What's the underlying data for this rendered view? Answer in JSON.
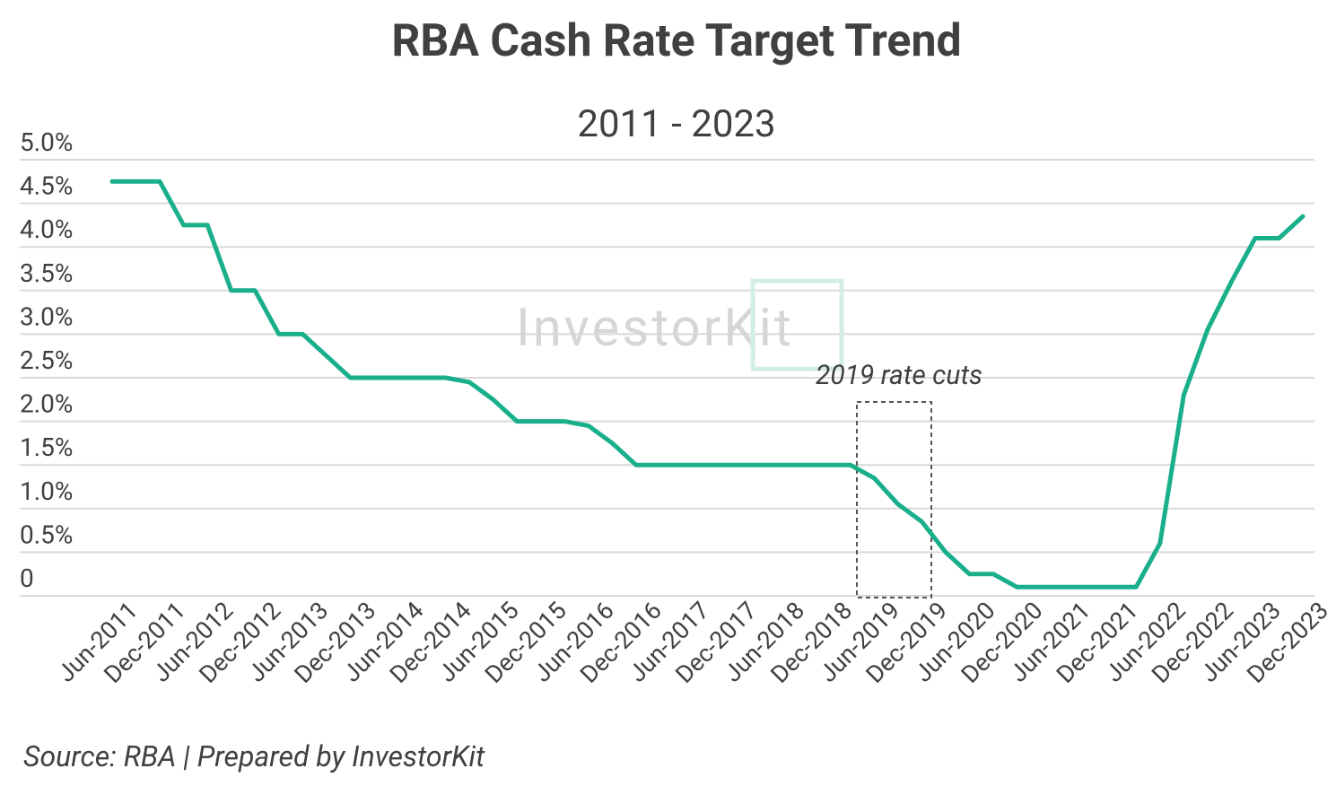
{
  "chart_data": {
    "type": "line",
    "title": "RBA Cash Rate Target Trend",
    "subtitle": "2011 - 2023",
    "source": "Source: RBA | Prepared by InvestorKit",
    "watermark": "InvestorKit",
    "annotation": "2019 rate cuts",
    "categories": [
      "Jun-2011",
      null,
      "Dec-2011",
      null,
      "Jun-2012",
      null,
      "Dec-2012",
      null,
      "Jun-2013",
      null,
      "Dec-2013",
      null,
      "Jun-2014",
      null,
      "Dec-2014",
      null,
      "Jun-2015",
      null,
      "Dec-2015",
      null,
      "Jun-2016",
      null,
      "Dec-2016",
      null,
      "Jun-2017",
      null,
      "Dec-2017",
      null,
      "Jun-2018",
      null,
      "Dec-2018",
      null,
      "Jun-2019",
      null,
      "Dec-2019",
      null,
      "Jun-2020",
      null,
      "Dec-2020",
      null,
      "Jun-2021",
      null,
      "Dec-2021",
      null,
      "Jun-2022",
      null,
      "Dec-2022",
      null,
      "Jun-2023",
      null,
      "Dec-2023"
    ],
    "values": [
      4.75,
      4.75,
      4.75,
      4.25,
      4.25,
      3.5,
      3.5,
      3.0,
      3.0,
      2.75,
      2.5,
      2.5,
      2.5,
      2.5,
      2.5,
      2.45,
      2.25,
      2.0,
      2.0,
      2.0,
      1.95,
      1.75,
      1.5,
      1.5,
      1.5,
      1.5,
      1.5,
      1.5,
      1.5,
      1.5,
      1.5,
      1.5,
      1.35,
      1.05,
      0.85,
      0.5,
      0.25,
      0.25,
      0.1,
      0.1,
      0.1,
      0.1,
      0.1,
      0.1,
      0.6,
      2.3,
      3.05,
      3.6,
      4.1,
      4.1,
      4.35
    ],
    "color": "#1aaf8b",
    "ylim": [
      0,
      5
    ],
    "yticks": [
      0,
      {
        "value": 0.5,
        "label": "0.5%"
      },
      {
        "value": 1,
        "label": "1.0%"
      },
      {
        "value": 1.5,
        "label": "1.5%"
      },
      {
        "value": 2,
        "label": "2.0%"
      },
      {
        "value": 2.5,
        "label": "2.5%"
      },
      {
        "value": 3,
        "label": "3.0%"
      },
      {
        "value": 3.5,
        "label": "3.5%"
      },
      {
        "value": 4,
        "label": "4.0%"
      },
      {
        "value": 4.5,
        "label": "4.5%"
      },
      {
        "value": 5,
        "label": "5.0%"
      }
    ],
    "grid": true
  }
}
